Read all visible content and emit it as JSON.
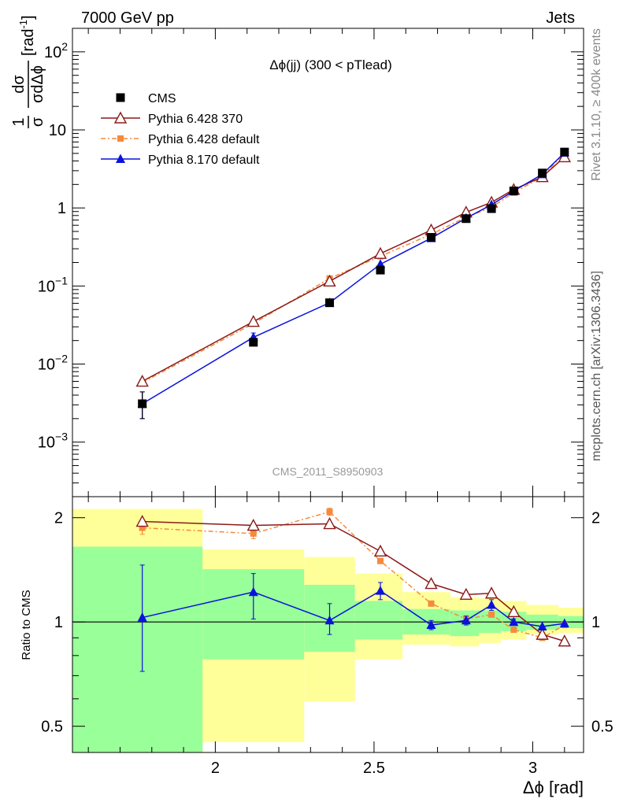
{
  "header": {
    "left": "7000 GeV pp",
    "right": "Jets"
  },
  "side": {
    "rivet": "Rivet 3.1.10, ≥ 400k events",
    "mcplots": "mcplots.cern.ch [arXiv:1306.3436]"
  },
  "analysis_label": "CMS_2011_S8950903",
  "colors": {
    "cms": "#000000",
    "pythia6_370": "#8b1a1a",
    "pythia6_default": "#f58a3c",
    "pythia8": "#0a12dc",
    "band_yellow": "#ffff99",
    "band_green": "#99ff99"
  },
  "chart_data": [
    {
      "type": "line",
      "title": "Δϕ(jj) (300 < pTlead)",
      "ylabel_fraction_top": "1",
      "ylabel_fraction_bottom": "σ",
      "ylabel_rest": "[rad",
      "ylabel_exp": "-1",
      "ylabel_close": "]",
      "yscale": "log",
      "xlim": [
        1.55,
        3.16
      ],
      "ylim": [
        0.0002,
        200
      ],
      "y_ticks": [
        {
          "value": 0.001,
          "label": "10",
          "exp": "−3"
        },
        {
          "value": 0.01,
          "label": "10",
          "exp": "−2"
        },
        {
          "value": 0.1,
          "label": "10",
          "exp": "−1"
        },
        {
          "value": 1,
          "label": "1",
          "exp": ""
        },
        {
          "value": 10,
          "label": "10",
          "exp": ""
        },
        {
          "value": 100,
          "label": "10",
          "exp": "2"
        }
      ],
      "x": [
        1.77,
        2.12,
        2.36,
        2.52,
        2.68,
        2.79,
        2.87,
        2.94,
        3.03,
        3.1
      ],
      "series": [
        {
          "name": "CMS",
          "key": "cms",
          "marker": "square",
          "values": [
            0.0031,
            0.019,
            0.061,
            0.16,
            0.42,
            0.73,
            0.98,
            1.65,
            2.8,
            5.2
          ],
          "err_low": [
            0.0011,
            0,
            0,
            0,
            0,
            0,
            0,
            0,
            0,
            0
          ],
          "err_high": [
            0.0013,
            0,
            0,
            0,
            0,
            0,
            0,
            0,
            0,
            0
          ]
        },
        {
          "name": "Pythia 6.428 370",
          "key": "pythia6_370",
          "marker": "open-triangle",
          "values": [
            0.006,
            0.035,
            0.115,
            0.26,
            0.52,
            0.88,
            1.18,
            1.72,
            2.5,
            4.5
          ]
        },
        {
          "name": "Pythia 6.428 default",
          "key": "pythia6_default",
          "marker": "small-square",
          "dash": "6,3,2,3",
          "values": [
            0.0058,
            0.033,
            0.125,
            0.24,
            0.46,
            0.76,
            1.02,
            1.57,
            2.5,
            5.1
          ]
        },
        {
          "name": "Pythia 8.170 default",
          "key": "pythia8",
          "marker": "triangle",
          "values": [
            0.0031,
            0.022,
            0.061,
            0.19,
            0.41,
            0.74,
            1.1,
            1.65,
            2.7,
            5.1
          ],
          "err_low": [
            0.0011,
            0.003,
            0.005,
            0,
            0,
            0,
            0,
            0,
            0,
            0
          ],
          "err_high": [
            0.0013,
            0.003,
            0.005,
            0,
            0,
            0,
            0,
            0,
            0,
            0
          ]
        }
      ],
      "legend": {
        "placement": "top-left"
      }
    },
    {
      "type": "line",
      "ylabel": "Ratio to CMS",
      "xlabel": "Δϕ [rad]",
      "xlim": [
        1.55,
        3.16
      ],
      "ylim": [
        0.42,
        2.3
      ],
      "yscale": "log",
      "x_ticks": [
        {
          "value": 2,
          "label": "2"
        },
        {
          "value": 2.5,
          "label": "2.5"
        },
        {
          "value": 3,
          "label": "3"
        }
      ],
      "y_ticks": [
        {
          "value": 0.5,
          "label": "0.5"
        },
        {
          "value": 1,
          "label": "1"
        },
        {
          "value": 2,
          "label": "2"
        }
      ],
      "bands": [
        {
          "x0": 1.55,
          "x1": 1.96,
          "yellow": [
            0.35,
            2.12
          ],
          "green": [
            0.36,
            1.65
          ]
        },
        {
          "x0": 1.96,
          "x1": 2.28,
          "yellow": [
            0.45,
            1.62
          ],
          "green": [
            0.78,
            1.42
          ]
        },
        {
          "x0": 2.28,
          "x1": 2.44,
          "yellow": [
            0.59,
            1.54
          ],
          "green": [
            0.82,
            1.28
          ]
        },
        {
          "x0": 2.44,
          "x1": 2.59,
          "yellow": [
            0.78,
            1.38
          ],
          "green": [
            0.89,
            1.15
          ]
        },
        {
          "x0": 2.59,
          "x1": 2.74,
          "yellow": [
            0.86,
            1.22
          ],
          "green": [
            0.92,
            1.09
          ]
        },
        {
          "x0": 2.74,
          "x1": 2.83,
          "yellow": [
            0.85,
            1.18
          ],
          "green": [
            0.91,
            1.08
          ]
        },
        {
          "x0": 2.83,
          "x1": 2.9,
          "yellow": [
            0.87,
            1.17
          ],
          "green": [
            0.93,
            1.08
          ]
        },
        {
          "x0": 2.9,
          "x1": 2.98,
          "yellow": [
            0.89,
            1.15
          ],
          "green": [
            0.94,
            1.07
          ]
        },
        {
          "x0": 2.98,
          "x1": 3.08,
          "yellow": [
            0.92,
            1.12
          ],
          "green": [
            0.95,
            1.05
          ]
        },
        {
          "x0": 3.08,
          "x1": 3.16,
          "yellow": [
            0.93,
            1.1
          ],
          "green": [
            0.96,
            1.04
          ]
        }
      ],
      "series": [
        {
          "name": "Pythia 6.428 370",
          "key": "pythia6_370",
          "marker": "open-triangle",
          "values": [
            1.95,
            1.9,
            1.92,
            1.6,
            1.29,
            1.2,
            1.21,
            1.07,
            0.92,
            0.88
          ]
        },
        {
          "name": "Pythia 6.428 default",
          "key": "pythia6_default",
          "marker": "small-square",
          "dash": "6,3,2,3",
          "values": [
            1.87,
            1.8,
            2.08,
            1.5,
            1.13,
            1.02,
            1.05,
            0.95,
            0.9,
            0.98
          ],
          "err_low": [
            0.08,
            0.06,
            0.05,
            0,
            0,
            0,
            0,
            0,
            0,
            0
          ],
          "err_high": [
            0.08,
            0.06,
            0.05,
            0,
            0,
            0,
            0,
            0,
            0,
            0
          ]
        },
        {
          "name": "Pythia 8.170 default",
          "key": "pythia8",
          "marker": "triangle",
          "values": [
            1.03,
            1.22,
            1.01,
            1.23,
            0.98,
            1.01,
            1.12,
            1.0,
            0.97,
            0.99
          ],
          "err_low": [
            0.31,
            0.2,
            0.09,
            0.07,
            0.03,
            0.03,
            0.04,
            0.02,
            0,
            0
          ],
          "err_high": [
            0.43,
            0.16,
            0.12,
            0.07,
            0.03,
            0.03,
            0.04,
            0.02,
            0,
            0
          ]
        }
      ]
    }
  ]
}
